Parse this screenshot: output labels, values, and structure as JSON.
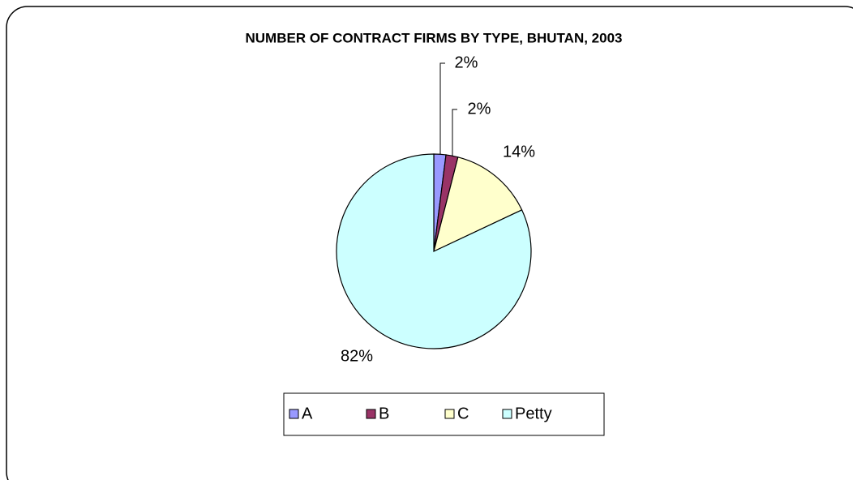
{
  "chart_data": {
    "type": "pie",
    "title": "NUMBER OF CONTRACT FIRMS BY TYPE, BHUTAN, 2003",
    "categories": [
      "A",
      "B",
      "C",
      "Petty"
    ],
    "values": [
      2,
      2,
      14,
      82
    ],
    "value_labels": [
      "2%",
      "2%",
      "14%",
      "82%"
    ],
    "colors": [
      "#9999ff",
      "#993366",
      "#ffffcc",
      "#ccffff"
    ],
    "legend": "bottom"
  }
}
